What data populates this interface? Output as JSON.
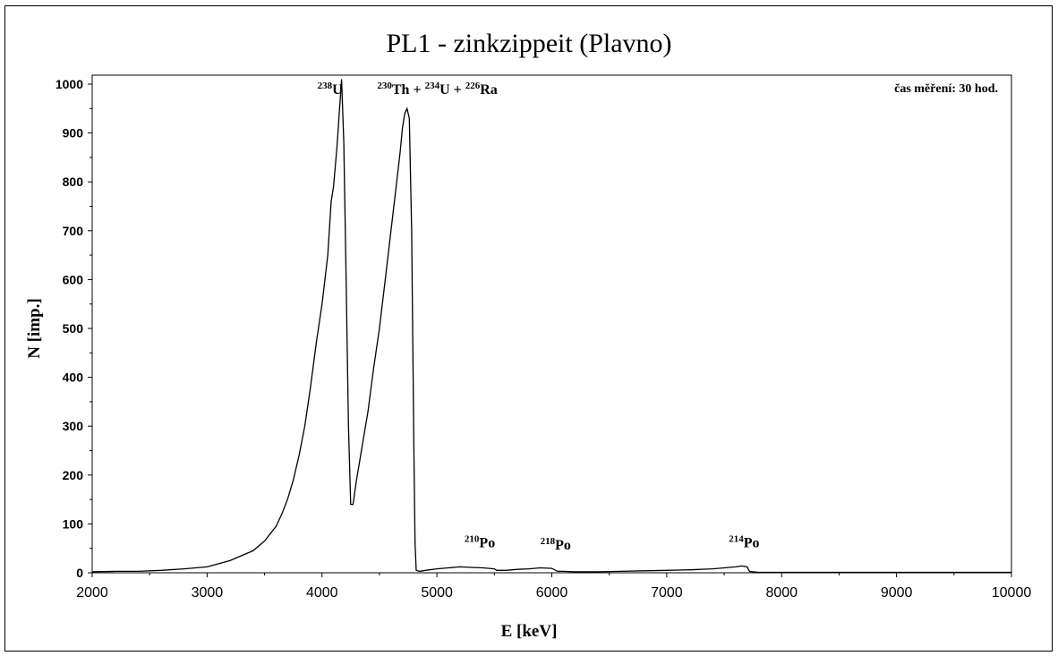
{
  "chart_data": {
    "type": "line",
    "title": "PL1 - zinkzippeit (Plavno)",
    "xlabel": "E [keV]",
    "ylabel": "N [imp.]",
    "xlim": [
      2000,
      10000
    ],
    "ylim": [
      0,
      1000
    ],
    "x_ticks": [
      2000,
      3000,
      4000,
      5000,
      6000,
      7000,
      8000,
      9000,
      10000
    ],
    "y_ticks": [
      0,
      100,
      200,
      300,
      400,
      500,
      600,
      700,
      800,
      900,
      1000
    ],
    "grid": false,
    "legend": "none",
    "series": [
      {
        "color": "#000000",
        "x": [
          2000,
          2200,
          2400,
          2600,
          2800,
          3000,
          3200,
          3300,
          3400,
          3500,
          3600,
          3650,
          3700,
          3750,
          3800,
          3850,
          3900,
          3950,
          4000,
          4050,
          4080,
          4100,
          4130,
          4150,
          4170,
          4190,
          4210,
          4230,
          4250,
          4270,
          4300,
          4350,
          4400,
          4450,
          4500,
          4550,
          4600,
          4650,
          4680,
          4700,
          4720,
          4740,
          4760,
          4780,
          4800,
          4810,
          4820,
          4850,
          4900,
          5000,
          5100,
          5200,
          5300,
          5400,
          5500,
          5520,
          5600,
          5700,
          5800,
          5900,
          6000,
          6050,
          6100,
          6200,
          6400,
          6600,
          6800,
          7000,
          7200,
          7400,
          7500,
          7600,
          7650,
          7700,
          7720,
          7750,
          7800,
          8000,
          8500,
          9000,
          9500,
          10000
        ],
        "y": [
          2,
          3,
          3,
          5,
          8,
          12,
          25,
          35,
          45,
          65,
          95,
          120,
          150,
          190,
          240,
          300,
          380,
          470,
          550,
          650,
          760,
          790,
          870,
          940,
          1010,
          880,
          600,
          300,
          140,
          140,
          190,
          260,
          330,
          420,
          500,
          600,
          700,
          800,
          860,
          910,
          940,
          950,
          930,
          700,
          250,
          60,
          5,
          3,
          5,
          8,
          10,
          12,
          11,
          10,
          8,
          5,
          5,
          7,
          8,
          10,
          9,
          3,
          3,
          2,
          2,
          3,
          4,
          5,
          6,
          8,
          10,
          12,
          14,
          12,
          3,
          2,
          1,
          1,
          1,
          1,
          1,
          1
        ]
      }
    ],
    "annotations": [
      {
        "id": "u238",
        "sup": "238",
        "text": "U",
        "at": [
          3960,
          980
        ]
      },
      {
        "id": "th230",
        "parts": [
          {
            "sup": "230",
            "text": "Th"
          },
          {
            "text": " + "
          },
          {
            "sup": "234",
            "text": "U"
          },
          {
            "text": " + "
          },
          {
            "sup": "226",
            "text": "Ra"
          }
        ],
        "at": [
          4480,
          980
        ]
      },
      {
        "id": "po210",
        "sup": "210",
        "text": "Po",
        "at": [
          5240,
          52
        ]
      },
      {
        "id": "po218",
        "sup": "218",
        "text": "Po",
        "at": [
          5900,
          48
        ]
      },
      {
        "id": "po214",
        "sup": "214",
        "text": "Po",
        "at": [
          7540,
          52
        ]
      }
    ],
    "note": "čas měření: 30 hod."
  }
}
